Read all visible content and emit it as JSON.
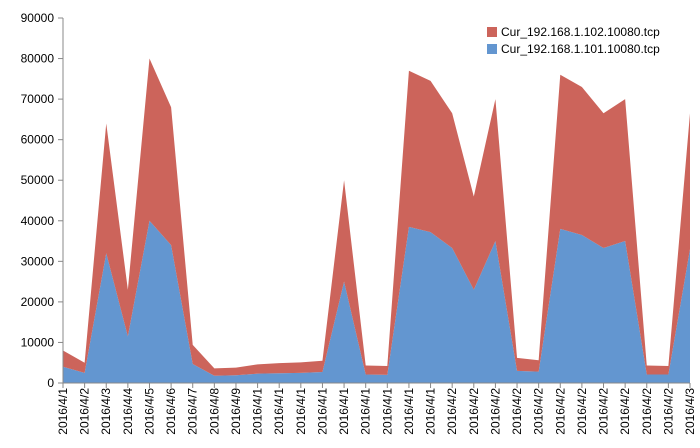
{
  "chart_data": {
    "type": "stacked_area",
    "categories": [
      "2016/4/1",
      "2016/4/2",
      "2016/4/3",
      "2016/4/4",
      "2016/4/5",
      "2016/4/6",
      "2016/4/7",
      "2016/4/8",
      "2016/4/9",
      "2016/4/1",
      "2016/4/1",
      "2016/4/1",
      "2016/4/1",
      "2016/4/1",
      "2016/4/1",
      "2016/4/1",
      "2016/4/1",
      "2016/4/1",
      "2016/4/2",
      "2016/4/2",
      "2016/4/2",
      "2016/4/2",
      "2016/4/2",
      "2016/4/2",
      "2016/4/2",
      "2016/4/2",
      "2016/4/2",
      "2016/4/2",
      "2016/4/2",
      "2016/4/3"
    ],
    "series": [
      {
        "name": "Cur_192.168.1.101.10080.tcp",
        "color": "#6396d0",
        "values": [
          4000,
          2500,
          32000,
          11500,
          40000,
          34000,
          4700,
          1800,
          1900,
          2300,
          2400,
          2500,
          2700,
          25000,
          2100,
          2000,
          38500,
          37200,
          33300,
          23000,
          35000,
          3000,
          2800,
          38000,
          36500,
          33300,
          35000,
          2100,
          2100,
          33000
        ]
      },
      {
        "name": "Cur_192.168.1.102.10080.tcp",
        "color": "#cc645b",
        "values": [
          4000,
          2500,
          32000,
          11500,
          40000,
          34000,
          4700,
          1800,
          1900,
          2300,
          2500,
          2600,
          2800,
          25000,
          2200,
          2200,
          38500,
          37300,
          33200,
          23000,
          35000,
          3200,
          2800,
          38000,
          36500,
          33200,
          35000,
          2200,
          2100,
          33500
        ]
      }
    ],
    "ylim": [
      0,
      90000
    ],
    "yticks": [
      0,
      10000,
      20000,
      30000,
      40000,
      50000,
      60000,
      70000,
      80000,
      90000
    ],
    "legend": "upper right"
  }
}
